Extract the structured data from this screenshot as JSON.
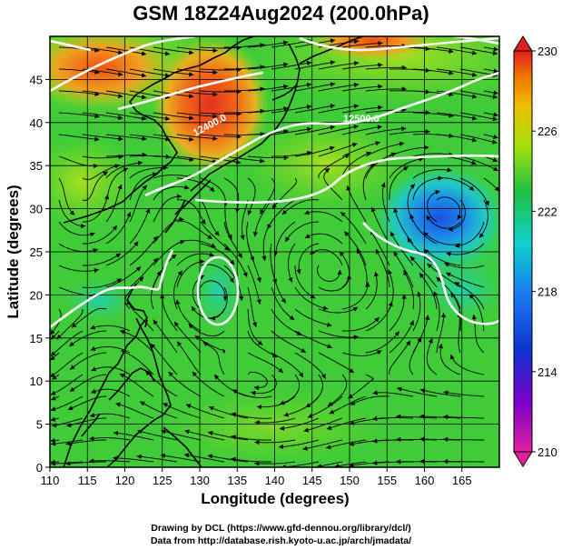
{
  "title": "GSM 18Z24Aug2024 (200.0hPa)",
  "xlabel": "Longitude (degrees)",
  "ylabel": "Latitude  (degrees)",
  "xticks": [
    "110",
    "115",
    "120",
    "125",
    "130",
    "135",
    "140",
    "145",
    "150",
    "155",
    "160",
    "165"
  ],
  "yticks": [
    "0",
    "5",
    "10",
    "15",
    "20",
    "25",
    "30",
    "35",
    "40",
    "45"
  ],
  "colorbar": {
    "ticks": [
      "230",
      "226",
      "222",
      "218",
      "214",
      "210"
    ],
    "min": 210,
    "max": 230
  },
  "contour_labels": [
    "12500.0",
    "12400.0"
  ],
  "credits": {
    "line1": "Drawing by DCL (https://www.gfd-dennou.org/library/dcl/)",
    "line2": "Data from http://database.rish.kyoto-u.ac.jp/arch/jmadata/"
  }
}
